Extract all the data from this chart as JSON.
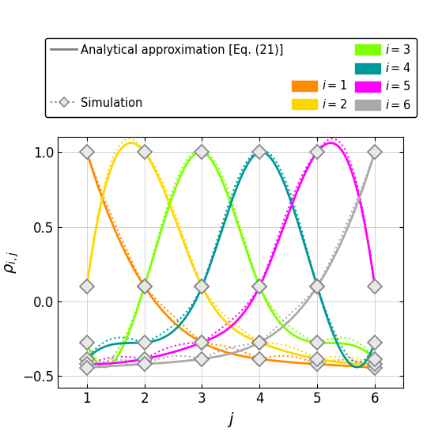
{
  "N": 6,
  "colors": {
    "1": "#FF8C00",
    "2": "#FFD700",
    "3": "#7FFF00",
    "4": "#009999",
    "5": "#FF00FF",
    "6": "#AAAAAA"
  },
  "xlabel": "$j$",
  "ylabel": "$\\rho_{i,j}$",
  "ylim": [
    -0.58,
    1.1
  ],
  "xlim": [
    0.5,
    6.5
  ],
  "xticks": [
    1,
    2,
    3,
    4,
    5,
    6
  ],
  "yticks": [
    -0.5,
    0,
    0.5,
    1
  ],
  "figsize": [
    5.4,
    5.46
  ],
  "dpi": 100,
  "analytical_lw": 2.0,
  "sim_lw": 1.5,
  "marker_size": 9,
  "legend_fontsize": 10.5,
  "tick_fontsize": 12,
  "axis_fontsize": 14,
  "sim_data": {
    "1": [
      1.0,
      0.1,
      -0.275,
      -0.385,
      -0.42,
      -0.445
    ],
    "2": [
      0.1,
      1.0,
      0.1,
      -0.275,
      -0.385,
      -0.42
    ],
    "3": [
      -0.275,
      0.1,
      1.0,
      0.1,
      -0.275,
      -0.385
    ],
    "4": [
      -0.385,
      -0.275,
      0.1,
      1.0,
      0.1,
      -0.275
    ],
    "5": [
      -0.42,
      -0.385,
      -0.275,
      0.1,
      1.0,
      0.1
    ],
    "6": [
      -0.445,
      -0.42,
      -0.385,
      -0.275,
      0.1,
      1.0
    ]
  }
}
